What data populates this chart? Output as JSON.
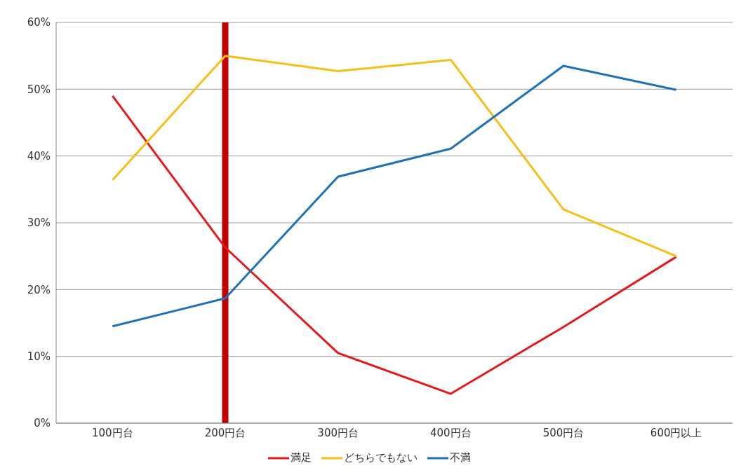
{
  "chart_data": {
    "type": "line",
    "categories": [
      "100円台",
      "200円台",
      "300円台",
      "400円台",
      "500円台",
      "600円以上"
    ],
    "series": [
      {
        "name": "満足",
        "color": "#e31a1c",
        "values": [
          49,
          26.3,
          10.5,
          4.4,
          14.4,
          24.9
        ]
      },
      {
        "name": "どちらでもない",
        "color": "#f5bf18",
        "values": [
          36.4,
          55,
          52.7,
          54.4,
          32,
          25
        ]
      },
      {
        "name": "不満",
        "color": "#1f72b8",
        "values": [
          14.5,
          18.7,
          36.9,
          41.1,
          53.5,
          49.9
        ]
      }
    ],
    "ylim": [
      0,
      60
    ],
    "yticks": [
      {
        "value": 0,
        "label": "0%"
      },
      {
        "value": 10,
        "label": "10%"
      },
      {
        "value": 20,
        "label": "20%"
      },
      {
        "value": 30,
        "label": "30%"
      },
      {
        "value": 40,
        "label": "40%"
      },
      {
        "value": 50,
        "label": "50%"
      },
      {
        "value": 60,
        "label": "60%"
      }
    ],
    "grid": "y",
    "legend": "bottom",
    "marker": "none",
    "line_style": "solid",
    "ref_lines": [
      {
        "axis": "x",
        "value": "200円台",
        "color": "#c00000"
      }
    ]
  }
}
